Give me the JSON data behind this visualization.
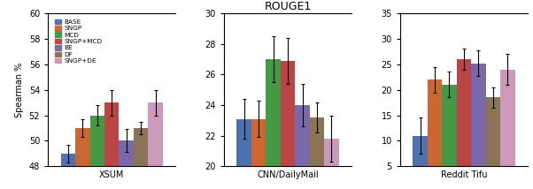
{
  "title": "ROUGE1",
  "ylabel": "Spearman %",
  "datasets": [
    "XSUM",
    "CNN/DailyMail",
    "Reddit Tifu"
  ],
  "methods": [
    "BASE",
    "SNGP",
    "MCD",
    "SNGP+MCD",
    "BE",
    "DF",
    "SNGP+DE"
  ],
  "colors": [
    "#4C72B0",
    "#CC6633",
    "#449944",
    "#BB4444",
    "#7B68AA",
    "#8B7355",
    "#CC99BB"
  ],
  "values": {
    "XSUM": [
      49.0,
      51.0,
      52.0,
      53.0,
      50.0,
      51.0,
      53.0
    ],
    "CNN/DailyMail": [
      23.1,
      23.1,
      27.0,
      26.9,
      24.0,
      23.2,
      21.8
    ],
    "Reddit Tifu": [
      11.0,
      22.0,
      21.0,
      26.0,
      25.2,
      18.5,
      24.0
    ]
  },
  "errors": {
    "XSUM": [
      0.7,
      0.7,
      0.8,
      1.0,
      0.9,
      0.5,
      1.0
    ],
    "CNN/DailyMail": [
      1.3,
      1.2,
      1.5,
      1.5,
      1.4,
      1.0,
      1.5
    ],
    "Reddit Tifu": [
      3.5,
      2.5,
      2.5,
      2.0,
      2.5,
      2.0,
      3.0
    ]
  },
  "ylims": {
    "XSUM": [
      48,
      60
    ],
    "CNN/DailyMail": [
      20,
      30
    ],
    "Reddit Tifu": [
      5,
      35
    ]
  },
  "yticks": {
    "XSUM": [
      48,
      50,
      52,
      54,
      56,
      58,
      60
    ],
    "CNN/DailyMail": [
      20,
      22,
      24,
      26,
      28,
      30
    ],
    "Reddit Tifu": [
      5,
      10,
      15,
      20,
      25,
      30,
      35
    ]
  },
  "figsize": [
    6.02,
    2.14
  ],
  "dpi": 100
}
